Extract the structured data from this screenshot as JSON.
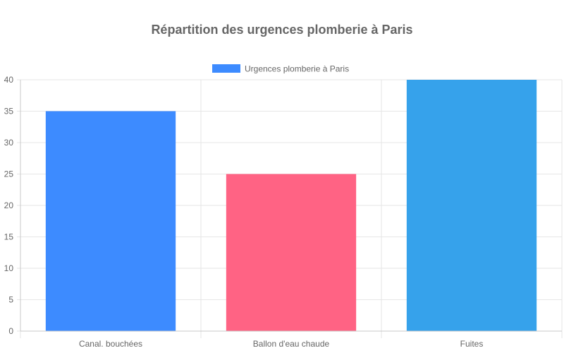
{
  "chart_data": {
    "type": "bar",
    "title": "Répartition des urgences plomberie à Paris",
    "categories": [
      "Canal. bouchées",
      "Ballon d'eau chaude",
      "Fuites"
    ],
    "series": [
      {
        "name": "Urgences plomberie à Paris",
        "values": [
          35,
          25,
          40
        ],
        "colors": [
          "#3d8bff",
          "#ff6384",
          "#36a2eb"
        ]
      }
    ],
    "legend_color": "#3d8bff",
    "ylim": [
      0,
      40
    ],
    "yticks": [
      0,
      5,
      10,
      15,
      20,
      25,
      30,
      35,
      40
    ],
    "grid": true,
    "legend_position": "top"
  }
}
